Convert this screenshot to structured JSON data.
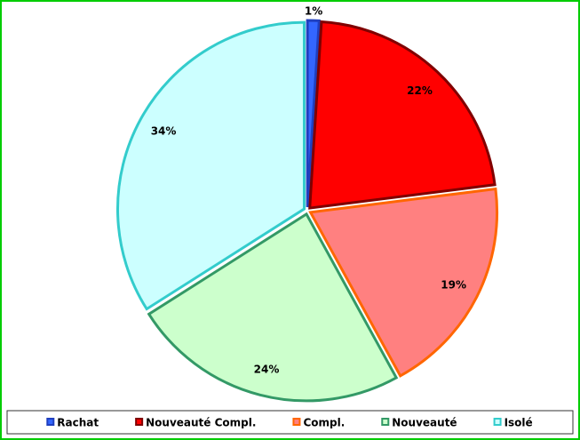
{
  "chart_data": {
    "type": "pie",
    "categories": [
      "Rachat",
      "Nouveauté Compl.",
      "Compl.",
      "Nouveauté",
      "Isolé"
    ],
    "values": [
      1,
      22,
      19,
      24,
      34
    ],
    "value_labels": [
      "1%",
      "22%",
      "19%",
      "24%",
      "34%"
    ],
    "colors": [
      "#3366ff",
      "#ff0000",
      "#ff8080",
      "#ccffcc",
      "#ccffff"
    ],
    "edge_colors": [
      "#1f3fbf",
      "#800000",
      "#ff6600",
      "#339966",
      "#33cccc"
    ],
    "legend": "bottom"
  }
}
